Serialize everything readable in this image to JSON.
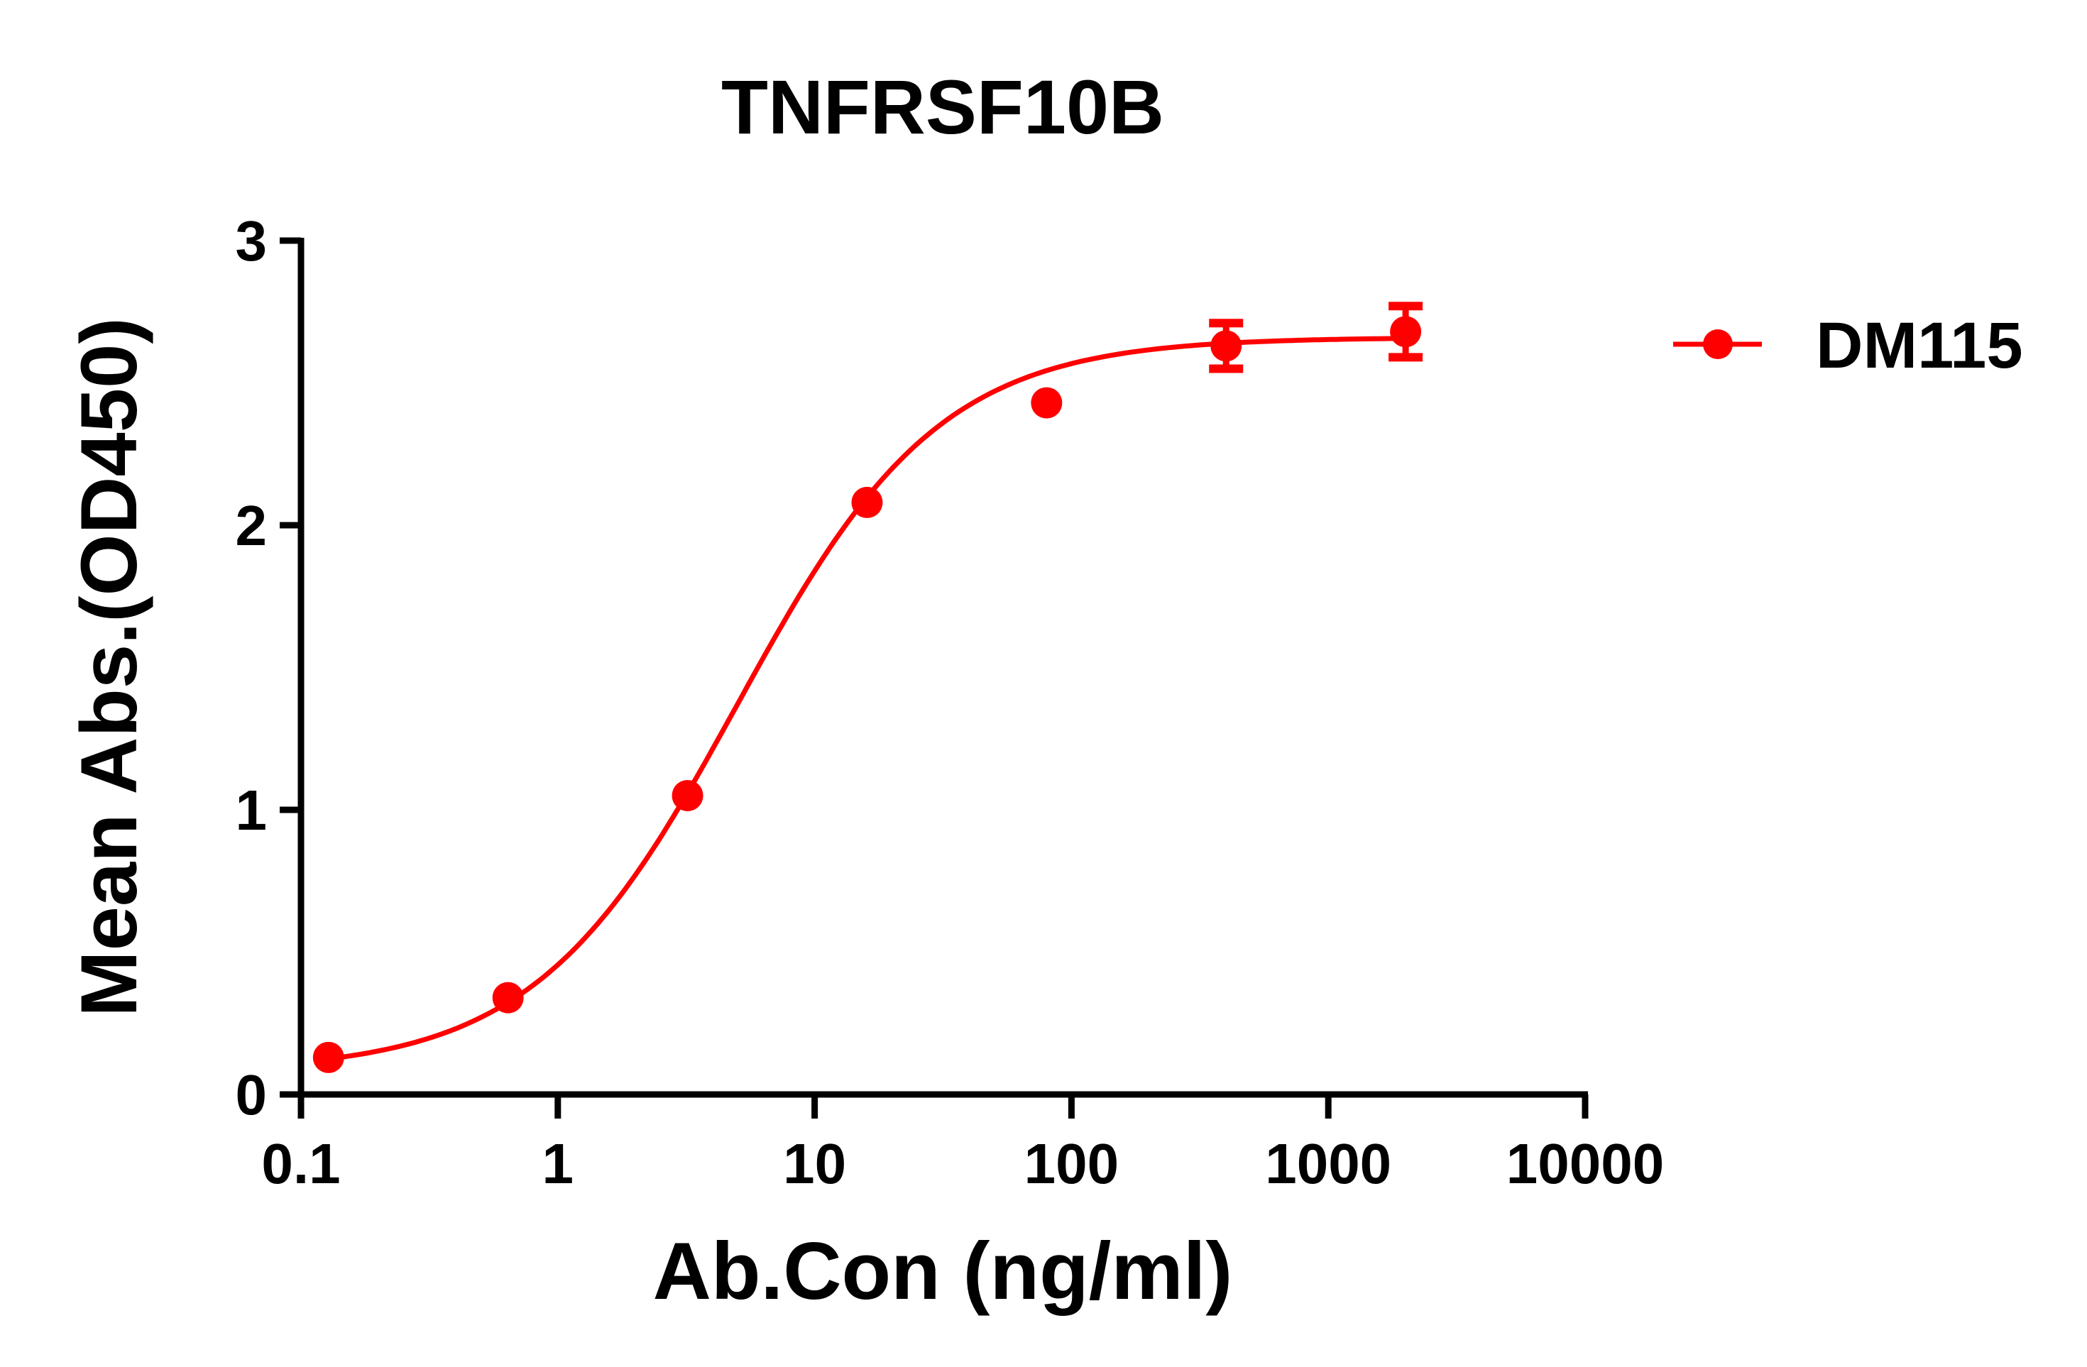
{
  "chart_data": {
    "type": "scatter",
    "title": "TNFRSF10B",
    "xlabel": "Ab.Con (ng/ml)",
    "ylabel": "Mean Abs.(OD450)",
    "xscale": "log",
    "xlim": [
      0.1,
      10000
    ],
    "ylim": [
      0,
      3
    ],
    "xticks": [
      "0.1",
      "1",
      "10",
      "100",
      "1000",
      "10000"
    ],
    "yticks": [
      "0",
      "1",
      "2",
      "3"
    ],
    "grid": false,
    "legend_position": "right",
    "series": [
      {
        "name": "DM115",
        "color": "#ff0000",
        "marker": "circle",
        "fit": "sigmoidal curve",
        "x": [
          0.128,
          0.64,
          3.2,
          16,
          80,
          400,
          2000
        ],
        "y": [
          0.13,
          0.34,
          1.05,
          2.08,
          2.43,
          2.63,
          2.68
        ],
        "error": [
          0,
          0,
          0,
          0,
          0,
          0.08,
          0.09
        ]
      }
    ]
  }
}
